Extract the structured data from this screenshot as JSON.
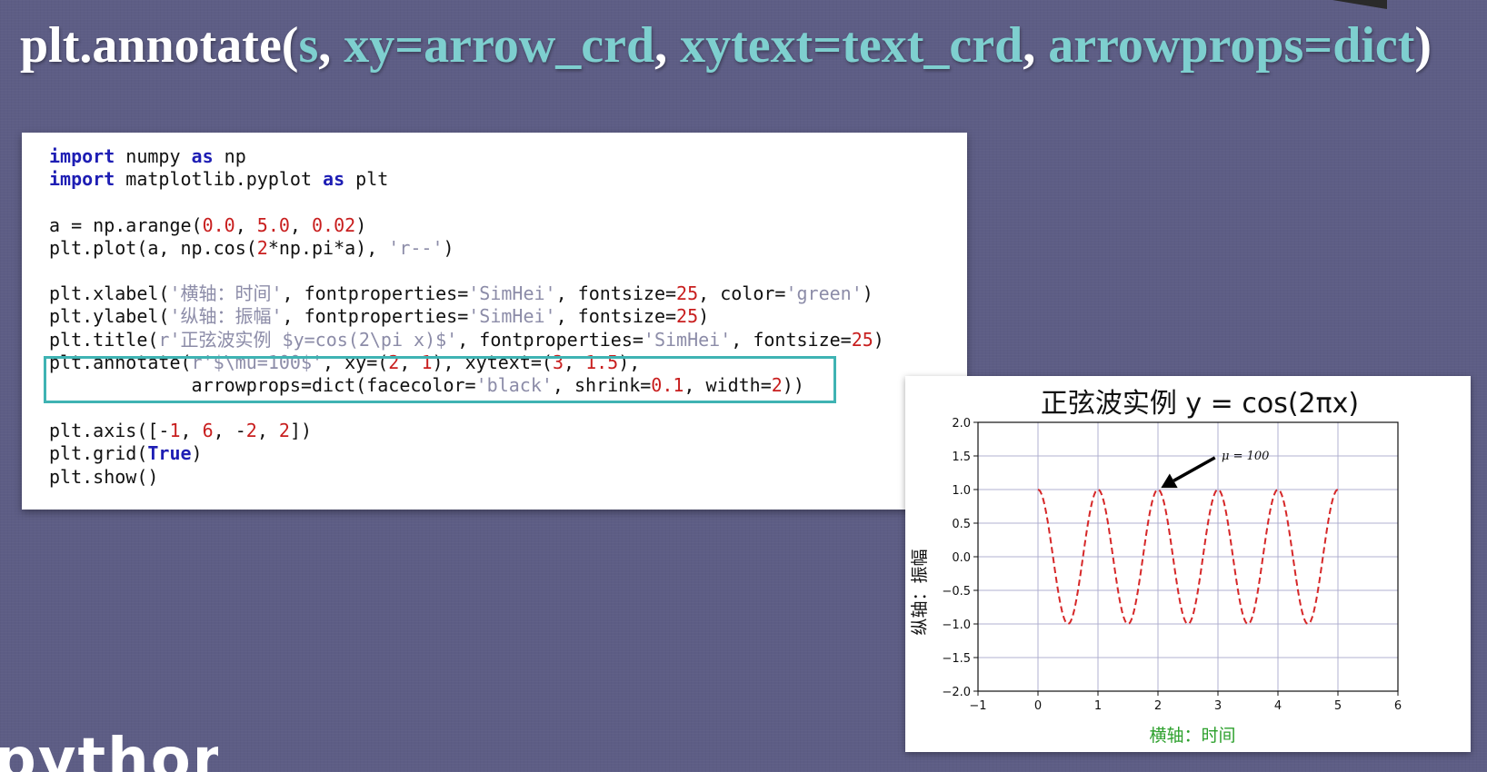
{
  "slide": {
    "title_parts": {
      "p1": "plt.annotate(",
      "p2": "s",
      "p3": ", ",
      "p4": "xy=arrow_crd",
      "p5": ", ",
      "p6": "xytext=text_crd",
      "p7": ", ",
      "p8": "arrowprops=dict",
      "p9": ")"
    },
    "logo_fragment": "python"
  },
  "code": {
    "l1": {
      "kw1": "import",
      "a": " numpy ",
      "kw2": "as",
      "b": " np"
    },
    "l2": {
      "kw1": "import",
      "a": " matplotlib.pyplot ",
      "kw2": "as",
      "b": " plt"
    },
    "l4": {
      "a": "a = np.arange(",
      "n1": "0.0",
      "c1": ", ",
      "n2": "5.0",
      "c2": ", ",
      "n3": "0.02",
      "e": ")"
    },
    "l5": {
      "a": "plt.plot(a, np.cos(",
      "n1": "2",
      "b": "*np.pi*a), ",
      "s1": "'r--'",
      "e": ")"
    },
    "l7": {
      "a": "plt.xlabel(",
      "s1": "'横轴：时间'",
      "b": ", fontproperties=",
      "s2": "'SimHei'",
      "c": ", fontsize=",
      "n1": "25",
      "d": ", color=",
      "s3": "'green'",
      "e": ")"
    },
    "l8": {
      "a": "plt.ylabel(",
      "s1": "'纵轴：振幅'",
      "b": ", fontproperties=",
      "s2": "'SimHei'",
      "c": ", fontsize=",
      "n1": "25",
      "e": ")"
    },
    "l9": {
      "a": "plt.title(",
      "s1": "r'正弦波实例 $y=cos(2\\pi x)$'",
      "b": ", fontproperties=",
      "s2": "'SimHei'",
      "c": ", fontsize=",
      "n1": "25",
      "e": ")"
    },
    "l10": {
      "a": "plt.annotate(",
      "s1": "r'$\\mu=100$'",
      "b": ", xy=(",
      "n1": "2",
      "c1": ", ",
      "n2": "1",
      "c": "), xytext=(",
      "n3": "3",
      "c2": ", ",
      "n4": "1.5",
      "e": "),"
    },
    "l11": {
      "a": "             arrowprops=dict(facecolor=",
      "s1": "'black'",
      "b": ", shrink=",
      "n1": "0.1",
      "c": ", width=",
      "n2": "2",
      "e": "))"
    },
    "l13": {
      "a": "plt.axis([-",
      "n1": "1",
      "c1": ", ",
      "n2": "6",
      "c2": ", -",
      "n3": "2",
      "c3": ", ",
      "n4": "2",
      "e": "])"
    },
    "l14": {
      "a": "plt.grid(",
      "k": "True",
      "e": ")"
    },
    "l15": {
      "a": "plt.show()"
    }
  },
  "chart_data": {
    "type": "line",
    "title": "正弦波实例  y = cos(2πx)",
    "xlabel": "横轴：时间",
    "ylabel": "纵轴：振幅",
    "xlim": [
      -1,
      6
    ],
    "ylim": [
      -2,
      2
    ],
    "xticks": [
      -1,
      0,
      1,
      2,
      3,
      4,
      5,
      6
    ],
    "yticks": [
      -2.0,
      -1.5,
      -1.0,
      -0.5,
      0.0,
      0.5,
      1.0,
      1.5,
      2.0
    ],
    "xtick_labels": [
      "−1",
      "0",
      "1",
      "2",
      "3",
      "4",
      "5",
      "6"
    ],
    "ytick_labels": [
      "−2.0",
      "−1.5",
      "−1.0",
      "−0.5",
      "0.0",
      "0.5",
      "1.0",
      "1.5",
      "2.0"
    ],
    "grid": true,
    "series": [
      {
        "function": "cos(2*pi*x)",
        "x_range": [
          0.0,
          5.0
        ],
        "x_step": 0.02,
        "color": "#d62728",
        "linestyle": "dashed"
      }
    ],
    "annotation": {
      "text": "μ = 100",
      "xy": [
        2,
        1
      ],
      "xytext": [
        3,
        1.5
      ],
      "arrow_color": "#000000"
    },
    "xlabel_color": "#2ca02c"
  }
}
